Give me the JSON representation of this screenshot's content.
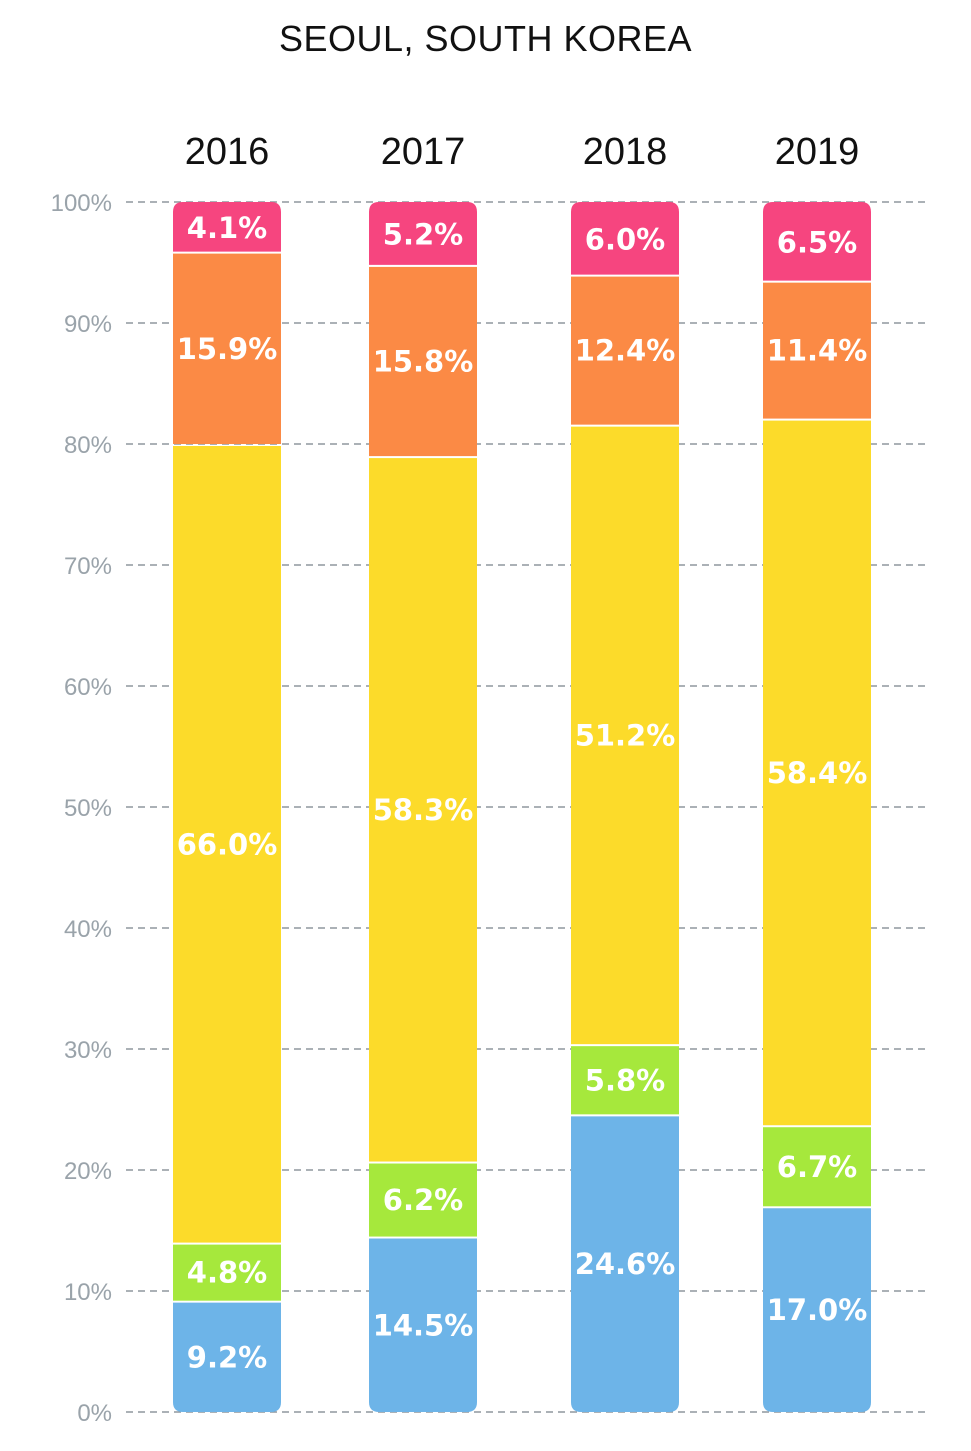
{
  "chart_data": {
    "type": "bar",
    "stacked": true,
    "title": "SEOUL, SOUTH KOREA",
    "xlabel": "",
    "ylabel": "",
    "ylim": [
      0,
      100
    ],
    "y_ticks": [
      0,
      10,
      20,
      30,
      40,
      50,
      60,
      70,
      80,
      90,
      100
    ],
    "y_tick_labels": [
      "0%",
      "10%",
      "20%",
      "30%",
      "40%",
      "50%",
      "60%",
      "70%",
      "80%",
      "90%",
      "100%"
    ],
    "grid": true,
    "categories": [
      "2016",
      "2017",
      "2018",
      "2019"
    ],
    "series": [
      {
        "name": "blue",
        "color": "#6db4e8",
        "values": [
          9.2,
          14.5,
          24.6,
          17.0
        ],
        "labels": [
          "9.2%",
          "14.5%",
          "24.6%",
          "17.0%"
        ]
      },
      {
        "name": "green",
        "color": "#a6e83c",
        "values": [
          4.8,
          6.2,
          5.8,
          6.7
        ],
        "labels": [
          "4.8%",
          "6.2%",
          "5.8%",
          "6.7%"
        ]
      },
      {
        "name": "yellow",
        "color": "#fcdb2a",
        "values": [
          66.0,
          58.3,
          51.2,
          58.4
        ],
        "labels": [
          "66.0%",
          "58.3%",
          "51.2%",
          "58.4%"
        ]
      },
      {
        "name": "orange",
        "color": "#fb8a45",
        "values": [
          15.9,
          15.8,
          12.4,
          11.4
        ],
        "labels": [
          "15.9%",
          "15.8%",
          "12.4%",
          "11.4%"
        ]
      },
      {
        "name": "pink",
        "color": "#f6457f",
        "values": [
          4.1,
          5.2,
          6.0,
          6.5
        ],
        "labels": [
          "4.1%",
          "5.2%",
          "6.0%",
          "6.5%"
        ]
      }
    ]
  }
}
